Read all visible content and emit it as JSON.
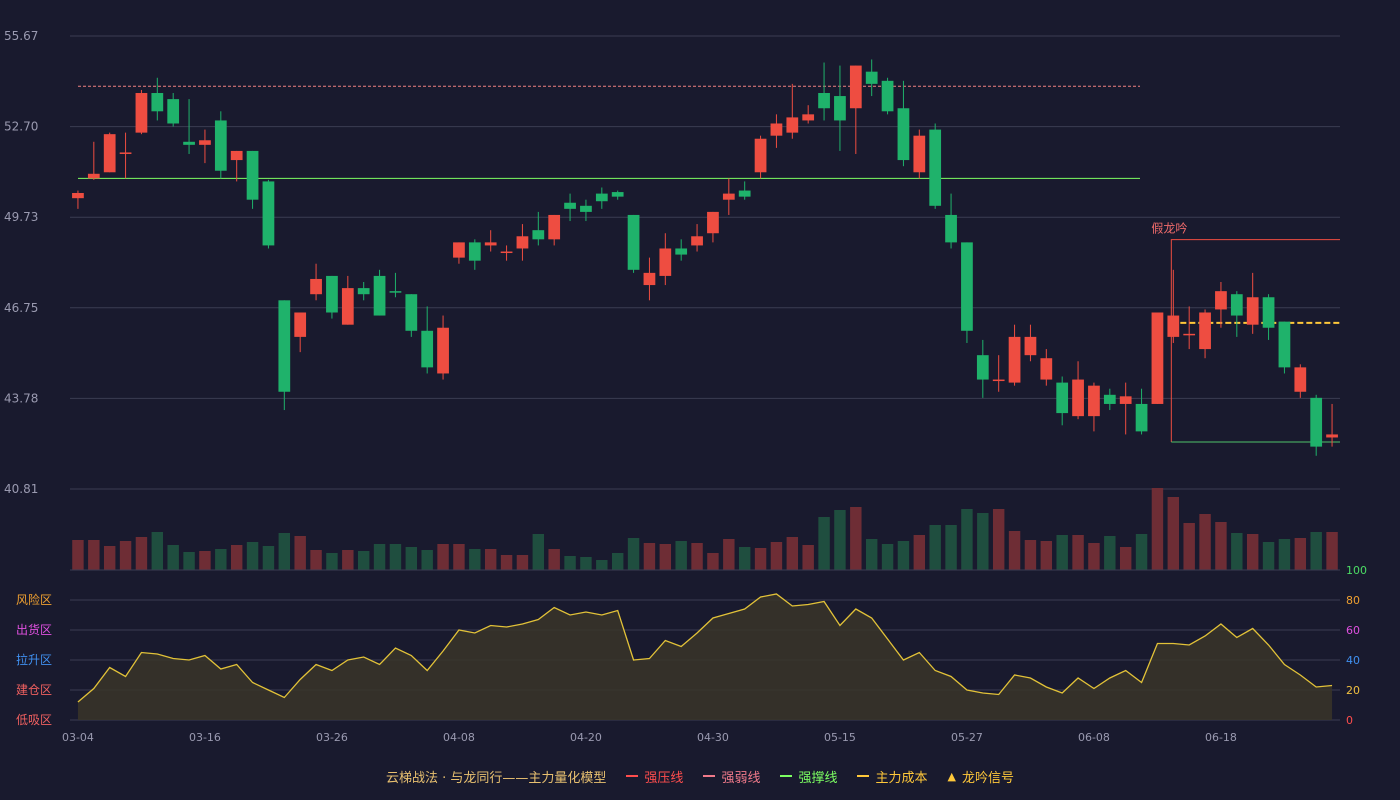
{
  "chart_data": {
    "type": "candlestick",
    "y_ticks": [
      "55.67",
      "52.70",
      "49.73",
      "46.75",
      "43.78",
      "40.81"
    ],
    "ylim": [
      40.81,
      55.67
    ],
    "x_ticks": [
      {
        "i": 0,
        "label": "03-04"
      },
      {
        "i": 8,
        "label": "03-16"
      },
      {
        "i": 16,
        "label": "03-26"
      },
      {
        "i": 24,
        "label": "04-08"
      },
      {
        "i": 32,
        "label": "04-20"
      },
      {
        "i": 40,
        "label": "04-30"
      },
      {
        "i": 48,
        "label": "05-15"
      },
      {
        "i": 56,
        "label": "05-27"
      },
      {
        "i": 64,
        "label": "06-08"
      },
      {
        "i": 72,
        "label": "06-18"
      }
    ],
    "ohlc": [
      [
        50.35,
        50.52,
        50.0,
        50.6
      ],
      [
        51.0,
        51.15,
        50.95,
        52.2
      ],
      [
        51.2,
        52.45,
        51.2,
        52.5
      ],
      [
        51.8,
        51.85,
        51.0,
        52.5
      ],
      [
        52.5,
        53.8,
        52.45,
        53.9
      ],
      [
        53.8,
        53.2,
        52.9,
        54.3
      ],
      [
        53.6,
        52.8,
        52.7,
        53.8
      ],
      [
        52.2,
        52.1,
        51.8,
        53.6
      ],
      [
        52.1,
        52.25,
        51.5,
        52.6
      ],
      [
        52.9,
        51.25,
        51.0,
        53.2
      ],
      [
        51.6,
        51.9,
        50.9,
        51.9
      ],
      [
        51.9,
        50.3,
        50.0,
        51.9
      ],
      [
        50.9,
        48.8,
        48.7,
        50.95
      ],
      [
        47.0,
        44.0,
        43.4,
        47.0
      ],
      [
        45.8,
        46.6,
        45.3,
        46.6
      ],
      [
        47.2,
        47.7,
        47.0,
        48.2
      ],
      [
        47.8,
        46.6,
        46.4,
        47.8
      ],
      [
        46.2,
        47.4,
        46.2,
        47.8
      ],
      [
        47.4,
        47.2,
        47.0,
        47.6
      ],
      [
        47.8,
        46.5,
        46.5,
        48.0
      ],
      [
        47.3,
        47.25,
        47.1,
        47.9
      ],
      [
        47.2,
        46.0,
        45.8,
        47.2
      ],
      [
        46.0,
        44.8,
        44.6,
        46.8
      ],
      [
        44.6,
        46.1,
        44.4,
        46.5
      ],
      [
        48.4,
        48.9,
        48.2,
        48.9
      ],
      [
        48.9,
        48.3,
        48.0,
        49.0
      ],
      [
        48.8,
        48.9,
        48.6,
        49.3
      ],
      [
        48.6,
        48.6,
        48.3,
        48.8
      ],
      [
        48.7,
        49.1,
        48.3,
        49.5
      ],
      [
        49.3,
        49.0,
        48.8,
        49.9
      ],
      [
        49.0,
        49.8,
        48.8,
        49.8
      ],
      [
        50.2,
        50.0,
        49.6,
        50.5
      ],
      [
        50.1,
        49.9,
        49.6,
        50.3
      ],
      [
        50.5,
        50.25,
        50.0,
        50.7
      ],
      [
        50.55,
        50.4,
        50.3,
        50.6
      ],
      [
        49.8,
        48.0,
        47.9,
        49.8
      ],
      [
        47.5,
        47.9,
        47.0,
        48.4
      ],
      [
        47.8,
        48.7,
        47.5,
        49.2
      ],
      [
        48.7,
        48.5,
        48.3,
        49.0
      ],
      [
        48.8,
        49.1,
        48.6,
        49.5
      ],
      [
        49.2,
        49.9,
        48.9,
        49.9
      ],
      [
        50.3,
        50.5,
        49.8,
        51.0
      ],
      [
        50.6,
        50.4,
        50.3,
        50.9
      ],
      [
        51.2,
        52.3,
        51.0,
        52.4
      ],
      [
        52.4,
        52.8,
        52.0,
        53.1
      ],
      [
        52.5,
        53.0,
        52.3,
        54.1
      ],
      [
        52.9,
        53.1,
        52.8,
        53.4
      ],
      [
        53.8,
        53.3,
        52.9,
        54.8
      ],
      [
        53.7,
        52.9,
        51.9,
        54.7
      ],
      [
        53.3,
        54.7,
        51.8,
        54.7
      ],
      [
        54.5,
        54.1,
        53.7,
        54.9
      ],
      [
        54.2,
        53.2,
        53.1,
        54.3
      ],
      [
        53.3,
        51.6,
        51.4,
        54.2
      ],
      [
        51.2,
        52.4,
        51.0,
        52.6
      ],
      [
        52.6,
        50.1,
        50.0,
        52.8
      ],
      [
        49.8,
        48.9,
        48.7,
        50.5
      ],
      [
        48.9,
        46.0,
        45.6,
        48.9
      ],
      [
        45.2,
        44.4,
        43.8,
        45.7
      ],
      [
        44.4,
        44.4,
        44.0,
        45.2
      ],
      [
        44.3,
        45.8,
        44.2,
        46.2
      ],
      [
        45.2,
        45.8,
        45.0,
        46.2
      ],
      [
        44.4,
        45.1,
        44.2,
        45.4
      ],
      [
        44.3,
        43.3,
        42.9,
        44.5
      ],
      [
        43.2,
        44.4,
        43.1,
        45.0
      ],
      [
        43.2,
        44.2,
        42.7,
        44.3
      ],
      [
        43.9,
        43.6,
        43.4,
        44.1
      ],
      [
        43.6,
        43.85,
        42.6,
        44.3
      ],
      [
        43.6,
        42.7,
        42.6,
        44.1
      ],
      [
        43.6,
        46.6,
        43.6,
        46.6
      ],
      [
        45.8,
        46.5,
        45.6,
        48.0
      ],
      [
        45.9,
        45.9,
        45.4,
        46.8
      ],
      [
        45.4,
        46.6,
        45.1,
        46.7
      ],
      [
        46.7,
        47.3,
        46.1,
        47.6
      ],
      [
        47.2,
        46.5,
        45.8,
        47.3
      ],
      [
        46.2,
        47.1,
        45.9,
        47.9
      ],
      [
        47.1,
        46.1,
        45.7,
        47.2
      ],
      [
        46.3,
        44.8,
        44.6,
        46.3
      ],
      [
        44.0,
        44.8,
        43.8,
        44.9
      ],
      [
        43.8,
        42.2,
        41.9,
        43.9
      ],
      [
        42.5,
        42.6,
        42.2,
        43.6
      ]
    ],
    "volume": [
      30,
      30,
      24,
      29,
      33,
      38,
      25,
      18,
      19,
      21,
      25,
      28,
      24,
      37,
      34,
      20,
      17,
      20,
      19,
      26,
      26,
      23,
      20,
      26,
      26,
      21,
      21,
      15,
      15,
      36,
      21,
      14,
      13,
      10,
      17,
      32,
      27,
      26,
      29,
      27,
      17,
      31,
      23,
      22,
      28,
      33,
      25,
      53,
      60,
      63,
      31,
      26,
      29,
      35,
      45,
      45,
      61,
      57,
      61,
      39,
      30,
      29,
      35,
      35,
      27,
      34,
      23,
      36,
      82,
      73,
      47,
      56,
      48,
      37,
      36,
      28,
      31,
      32,
      38,
      38
    ],
    "indicator": [
      12,
      21,
      35,
      29,
      45,
      44,
      41,
      40,
      43,
      34,
      37,
      25,
      20,
      15,
      27,
      37,
      33,
      40,
      42,
      37,
      48,
      43,
      33,
      46,
      60,
      58,
      63,
      62,
      64,
      67,
      75,
      70,
      72,
      70,
      73,
      40,
      41,
      53,
      49,
      58,
      68,
      71,
      74,
      82,
      84,
      76,
      77,
      79,
      63,
      74,
      68,
      54,
      40,
      45,
      33,
      29,
      20,
      18,
      17,
      30,
      28,
      22,
      18,
      28,
      21,
      28,
      33,
      25,
      51,
      51,
      50,
      56,
      64,
      55,
      61,
      50,
      37,
      30,
      22,
      23
    ],
    "indicator_ticks": [
      "100",
      "80",
      "60",
      "40",
      "20",
      "0"
    ],
    "indicator_ylim": [
      0,
      100
    ],
    "zones": [
      "风险区",
      "出货区",
      "拉升区",
      "建仓区",
      "低吸区"
    ],
    "lines": {
      "strong_pressure": 54.02,
      "strong_support": 51.0,
      "box_top": 48.99,
      "box_bottom": 42.35,
      "main_cost": 46.26,
      "box_start_index": 69
    },
    "annotation": "假龙吟",
    "colors": {
      "up": "#ee4d41",
      "down": "#1fb26b",
      "up_vol": "#6e2d35",
      "down_vol": "#1f4e3f",
      "weak_line": "#f08080",
      "support_line": "#7cff62",
      "cost_line": "#ffc83a",
      "indicator_line": "#e2c238",
      "annotation": "#f06b6b"
    }
  },
  "legend": {
    "title": "云梯战法 · 与龙同行——主力量化模型",
    "items": [
      {
        "label": "强压线",
        "color": "#ff4d4d",
        "style": "solid"
      },
      {
        "label": "强弱线",
        "color": "#f07a8a",
        "style": "dash"
      },
      {
        "label": "强撑线",
        "color": "#7cff62",
        "style": "solid"
      },
      {
        "label": "主力成本",
        "color": "#ffc83a",
        "style": "dash"
      },
      {
        "label": "龙吟信号",
        "color": "#ffc83a",
        "style": "triangle"
      }
    ]
  }
}
